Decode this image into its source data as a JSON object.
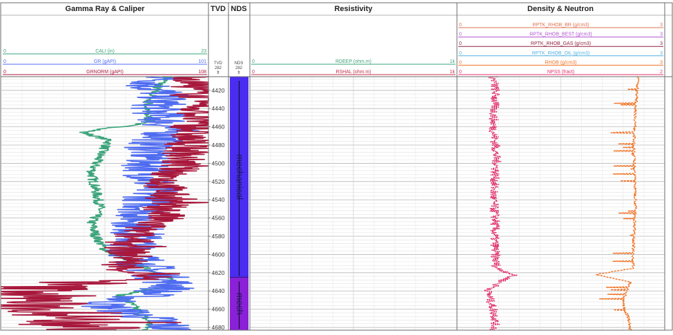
{
  "tracks": {
    "gamma": {
      "title": "Gamma Ray & Caliper"
    },
    "tvd": {
      "title": "TVD",
      "sub1": "TVD",
      "sub2": "282",
      "sub3": "ft"
    },
    "nds": {
      "title": "NDS",
      "sub1": "NDS",
      "sub2": "282",
      "sub3": "ft"
    },
    "resistivity": {
      "title": "Resistivity"
    },
    "density": {
      "title": "Density & Neutron"
    }
  },
  "curves": {
    "gamma": [
      {
        "name": "CALI (in)",
        "min": "0",
        "max": "23",
        "color": "#3aa37a"
      },
      {
        "name": "GR (gAPI)",
        "min": "0",
        "max": "101",
        "color": "#4f6cf0"
      },
      {
        "name": "GRNORM (gAPI)",
        "min": "0",
        "max": "108",
        "color": "#a8183c"
      }
    ],
    "resistivity": [
      {
        "name": "RDEEP (ohm.m)",
        "min": "0",
        "max": "1k",
        "color": "#3aa37a"
      },
      {
        "name": "RSHAL (ohm.m)",
        "min": "0",
        "max": "1k",
        "color": "#c0304a"
      }
    ],
    "density": [
      {
        "name": "RPTK_RHOB_BR (g/cm3)",
        "min": "0",
        "max": "3",
        "color": "#e07050"
      },
      {
        "name": "RPTK_RHOB_BEST (g/cm3)",
        "min": "0",
        "max": "3",
        "color": "#b050d0"
      },
      {
        "name": "RPTK_RHOB_GAS (g/cm3)",
        "min": "0",
        "max": "3",
        "color": "#902040"
      },
      {
        "name": "RPTK_RHOB_OIL (g/cm3)",
        "min": "0",
        "max": "3",
        "color": "#50b0e0"
      },
      {
        "name": "RHOB (g/cm3)",
        "min": "0",
        "max": "3",
        "color": "#f07020"
      },
      {
        "name": "NPSS (fract)",
        "min": "0",
        "max": "2",
        "color": "#e0306a"
      }
    ]
  },
  "zones": [
    {
      "label": "mechanical",
      "from": 4400,
      "to": 4625,
      "color": "#4a2df0"
    },
    {
      "label": "mech",
      "from": 4625,
      "to": 4685,
      "color": "#8a20d8"
    }
  ],
  "chart_data": {
    "type": "line",
    "ylim": [
      4405,
      4683
    ],
    "depth_ticks": [
      4420,
      4440,
      4460,
      4480,
      4500,
      4520,
      4540,
      4560,
      4580,
      4600,
      4620,
      4640,
      4660,
      4680
    ],
    "series": [
      {
        "name": "CALI",
        "track": "gamma",
        "xlim": [
          0,
          23
        ],
        "depth": [
          4405,
          4420,
          4440,
          4455,
          4466,
          4475,
          4490,
          4510,
          4530,
          4550,
          4565,
          4580,
          4595,
          4605,
          4615,
          4625,
          4635,
          4645,
          4655,
          4665,
          4675,
          4683
        ],
        "values": [
          18.5,
          17.0,
          16.0,
          16.5,
          9.0,
          12.0,
          11.0,
          10.0,
          10.5,
          11.0,
          10.0,
          10.5,
          11.5,
          13.5,
          16.0,
          18.5,
          18.5,
          13.0,
          14.5,
          15.5,
          16.5,
          16.0
        ]
      },
      {
        "name": "GR",
        "track": "gamma",
        "xlim": [
          0,
          101
        ],
        "depth": [
          4405,
          4415,
          4425,
          4440,
          4455,
          4465,
          4480,
          4500,
          4520,
          4540,
          4560,
          4580,
          4600,
          4615,
          4625,
          4635,
          4645,
          4655,
          4665,
          4675,
          4683
        ],
        "values": [
          82,
          72,
          80,
          76,
          80,
          83,
          74,
          72,
          74,
          73,
          68,
          66,
          65,
          72,
          78,
          85,
          70,
          48,
          65,
          80,
          82
        ]
      },
      {
        "name": "GRNORM",
        "track": "gamma",
        "xlim": [
          0,
          108
        ],
        "depth": [
          4405,
          4415,
          4430,
          4450,
          4470,
          4490,
          4505,
          4520,
          4540,
          4560,
          4575,
          4590,
          4605,
          4615,
          4625,
          4635,
          4645,
          4655,
          4665,
          4675,
          4683
        ],
        "values": [
          102,
          99,
          104,
          102,
          98,
          96,
          92,
          85,
          87,
          84,
          70,
          65,
          68,
          62,
          80,
          18,
          22,
          14,
          35,
          40,
          55
        ]
      },
      {
        "name": "NPSS",
        "track": "density",
        "xlim": [
          0,
          2
        ],
        "depth": [
          4405,
          4420,
          4440,
          4460,
          4480,
          4500,
          4520,
          4540,
          4560,
          4580,
          4600,
          4615,
          4622,
          4630,
          4640,
          4650,
          4660,
          4670,
          4683
        ],
        "values": [
          0.35,
          0.37,
          0.36,
          0.35,
          0.37,
          0.38,
          0.36,
          0.35,
          0.37,
          0.36,
          0.37,
          0.38,
          0.55,
          0.42,
          0.3,
          0.32,
          0.35,
          0.37,
          0.36
        ]
      },
      {
        "name": "RHOB",
        "track": "density",
        "xlim": [
          0,
          3
        ],
        "depth": [
          4405,
          4420,
          4440,
          4460,
          4480,
          4500,
          4520,
          4540,
          4560,
          4580,
          4600,
          4615,
          4622,
          4630,
          4640,
          4650,
          4660,
          4670,
          4683
        ],
        "values": [
          2.62,
          2.6,
          2.58,
          2.57,
          2.55,
          2.56,
          2.57,
          2.58,
          2.57,
          2.56,
          2.54,
          2.55,
          2.0,
          2.5,
          2.45,
          2.4,
          2.42,
          2.48,
          2.5
        ]
      }
    ]
  }
}
